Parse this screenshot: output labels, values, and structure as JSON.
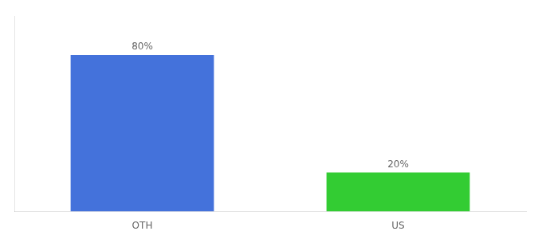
{
  "chart_data": {
    "type": "bar",
    "categories": [
      "OTH",
      "US"
    ],
    "values": [
      80,
      20
    ],
    "value_labels": [
      "80%",
      "20%"
    ],
    "colors": [
      "#4472db",
      "#33cc33"
    ],
    "ylim": [
      0,
      100
    ],
    "data_labels": true,
    "grid": false,
    "tick_labels": "x"
  }
}
